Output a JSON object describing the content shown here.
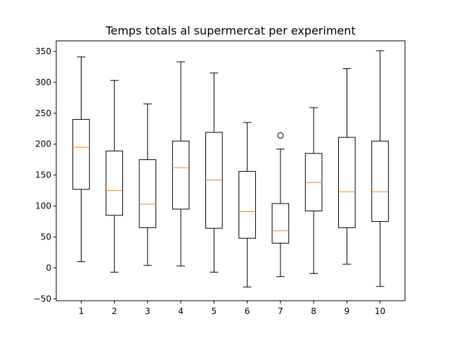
{
  "chart_data": {
    "type": "box",
    "title": "Temps totals al supermercat per experiment",
    "xlabel": "",
    "ylabel": "",
    "categories": [
      "1",
      "2",
      "3",
      "4",
      "5",
      "6",
      "7",
      "8",
      "9",
      "10"
    ],
    "boxes": [
      {
        "whisker_low": 10,
        "q1": 127,
        "median": 195,
        "q3": 240,
        "whisker_high": 341,
        "outliers": []
      },
      {
        "whisker_low": -7,
        "q1": 85,
        "median": 125,
        "q3": 189,
        "whisker_high": 303,
        "outliers": []
      },
      {
        "whisker_low": 4,
        "q1": 65,
        "median": 103,
        "q3": 175,
        "whisker_high": 265,
        "outliers": []
      },
      {
        "whisker_low": 3,
        "q1": 95,
        "median": 162,
        "q3": 205,
        "whisker_high": 333,
        "outliers": []
      },
      {
        "whisker_low": -7,
        "q1": 64,
        "median": 142,
        "q3": 219,
        "whisker_high": 315,
        "outliers": []
      },
      {
        "whisker_low": -31,
        "q1": 48,
        "median": 91,
        "q3": 156,
        "whisker_high": 235,
        "outliers": []
      },
      {
        "whisker_low": -14,
        "q1": 40,
        "median": 60,
        "q3": 104,
        "whisker_high": 192,
        "outliers": [
          214
        ]
      },
      {
        "whisker_low": -9,
        "q1": 92,
        "median": 138,
        "q3": 185,
        "whisker_high": 259,
        "outliers": []
      },
      {
        "whisker_low": 6,
        "q1": 65,
        "median": 123,
        "q3": 211,
        "whisker_high": 322,
        "outliers": []
      },
      {
        "whisker_low": -30,
        "q1": 75,
        "median": 123,
        "q3": 205,
        "whisker_high": 351,
        "outliers": []
      }
    ],
    "ylim": [
      -53,
      367
    ],
    "yticks": [
      -50,
      0,
      50,
      100,
      150,
      200,
      250,
      300,
      350
    ],
    "grid": false,
    "colors": {
      "box": "#000000",
      "median": "#ff7f0e",
      "whisker": "#000000",
      "outlier": "#000000",
      "axes": "#000000",
      "background": "#ffffff"
    }
  }
}
